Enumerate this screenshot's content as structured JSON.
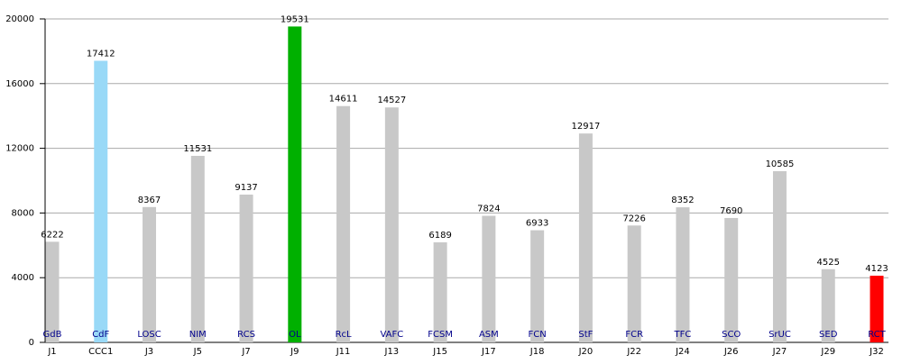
{
  "chart_data": {
    "type": "bar",
    "categories": [
      "J1",
      "CCC1",
      "J3",
      "J5",
      "J7",
      "J9",
      "J11",
      "J13",
      "J15",
      "J17",
      "J18",
      "J20",
      "J22",
      "J24",
      "J26",
      "J27",
      "J29",
      "J32"
    ],
    "bar_labels": [
      "GdB",
      "CdF",
      "LOSC",
      "NIM",
      "RCS",
      "OL",
      "RcL",
      "VAFC",
      "FCSM",
      "ASM",
      "FCN",
      "StF",
      "FCR",
      "TFC",
      "SCO",
      "SrUC",
      "SED",
      "RCT"
    ],
    "values": [
      6222,
      17412,
      8367,
      11531,
      9137,
      19531,
      14611,
      14527,
      6189,
      7824,
      6933,
      12917,
      7226,
      8352,
      7690,
      10585,
      4525,
      4123
    ],
    "colors": [
      "#c8c8c8",
      "#99d9f7",
      "#c8c8c8",
      "#c8c8c8",
      "#c8c8c8",
      "#00b000",
      "#c8c8c8",
      "#c8c8c8",
      "#c8c8c8",
      "#c8c8c8",
      "#c8c8c8",
      "#c8c8c8",
      "#c8c8c8",
      "#c8c8c8",
      "#c8c8c8",
      "#c8c8c8",
      "#c8c8c8",
      "#ff0000"
    ],
    "ylim": [
      0,
      20000
    ],
    "yticks": [
      0,
      4000,
      8000,
      12000,
      16000,
      20000
    ],
    "grid": true
  }
}
